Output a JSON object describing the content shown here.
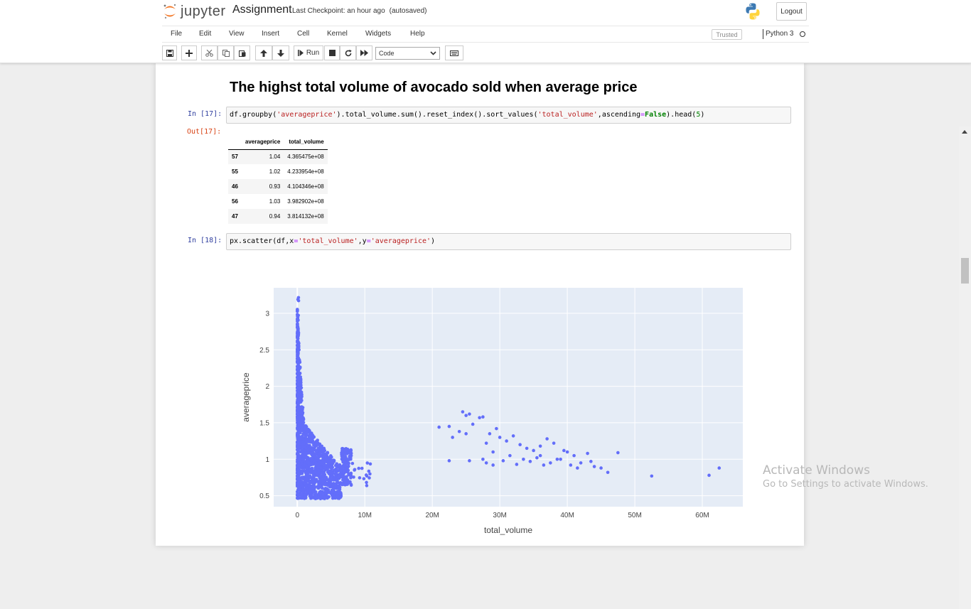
{
  "header": {
    "logo_text": "jupyter",
    "notebook_name": "Assignment",
    "checkpoint": "Last Checkpoint: an hour ago",
    "autosave": "(autosaved)",
    "logout_label": "Logout"
  },
  "menubar": {
    "items": [
      "File",
      "Edit",
      "View",
      "Insert",
      "Cell",
      "Kernel",
      "Widgets",
      "Help"
    ],
    "trusted": "Trusted",
    "kernel_name": "Python 3"
  },
  "toolbar": {
    "run_label": "Run",
    "cell_type": "Code"
  },
  "notebook": {
    "heading": "The highst total volume of avocado sold when average price",
    "cell1": {
      "prompt": "In [17]:",
      "out_prompt": "Out[17]:",
      "code": {
        "p1": "df.groupby(",
        "s1": "'averageprice'",
        "p2": ").total_volume.sum().reset_index().sort_values(",
        "s2": "'total_volume'",
        "p3": ",ascending",
        "eq": "=",
        "kw": "False",
        "p4": ").head(",
        "num": "5",
        "p5": ")"
      },
      "table": {
        "columns": [
          "averageprice",
          "total_volume"
        ],
        "rows": [
          {
            "index": "57",
            "averageprice": "1.04",
            "total_volume": "4.365475e+08"
          },
          {
            "index": "55",
            "averageprice": "1.02",
            "total_volume": "4.233954e+08"
          },
          {
            "index": "46",
            "averageprice": "0.93",
            "total_volume": "4.104346e+08"
          },
          {
            "index": "56",
            "averageprice": "1.03",
            "total_volume": "3.982902e+08"
          },
          {
            "index": "47",
            "averageprice": "0.94",
            "total_volume": "3.814132e+08"
          }
        ]
      }
    },
    "cell2": {
      "prompt": "In [18]:",
      "code": {
        "p1": "px.scatter(df,x",
        "eq1": "=",
        "s1": "'total_volume'",
        "p2": ",y",
        "eq2": "=",
        "s2": "'averageprice'",
        "p3": ")"
      }
    }
  },
  "chart_data": {
    "type": "scatter",
    "xlabel": "total_volume",
    "ylabel": "averageprice",
    "x_ticks": [
      "0",
      "10M",
      "20M",
      "30M",
      "40M",
      "50M",
      "60M"
    ],
    "y_ticks": [
      "0.5",
      "1",
      "1.5",
      "2",
      "2.5",
      "3"
    ],
    "xlim": [
      -3500000,
      66000000
    ],
    "ylim": [
      0.35,
      3.35
    ],
    "marker_color": "#636efa",
    "plot_background": "#e5ecf6",
    "grid": true,
    "points": [
      [
        21000000,
        1.44
      ],
      [
        22500000,
        1.45
      ],
      [
        23000000,
        1.3
      ],
      [
        22500000,
        0.98
      ],
      [
        24000000,
        1.38
      ],
      [
        24500000,
        1.65
      ],
      [
        25000000,
        1.6
      ],
      [
        25500000,
        1.62
      ],
      [
        26000000,
        1.48
      ],
      [
        27000000,
        1.57
      ],
      [
        27500000,
        1.58
      ],
      [
        28000000,
        1.22
      ],
      [
        28500000,
        1.35
      ],
      [
        29000000,
        1.1
      ],
      [
        29500000,
        1.42
      ],
      [
        25000000,
        1.35
      ],
      [
        25500000,
        0.98
      ],
      [
        27500000,
        1.0
      ],
      [
        28000000,
        0.95
      ],
      [
        29000000,
        0.92
      ],
      [
        30000000,
        1.3
      ],
      [
        31000000,
        1.25
      ],
      [
        32000000,
        1.32
      ],
      [
        33000000,
        1.2
      ],
      [
        34000000,
        1.15
      ],
      [
        35000000,
        1.12
      ],
      [
        36000000,
        1.05
      ],
      [
        37000000,
        1.28
      ],
      [
        38000000,
        1.22
      ],
      [
        39000000,
        1.0
      ],
      [
        40000000,
        1.1
      ],
      [
        41000000,
        1.05
      ],
      [
        42000000,
        0.95
      ],
      [
        43000000,
        1.08
      ],
      [
        44000000,
        0.9
      ],
      [
        45000000,
        0.88
      ],
      [
        46000000,
        0.82
      ],
      [
        47500000,
        1.09
      ],
      [
        52500000,
        0.77
      ],
      [
        61000000,
        0.78
      ],
      [
        62500000,
        0.88
      ],
      [
        30500000,
        0.98
      ],
      [
        31500000,
        1.05
      ],
      [
        32500000,
        0.93
      ],
      [
        33500000,
        1.0
      ],
      [
        34500000,
        0.97
      ],
      [
        35500000,
        1.02
      ],
      [
        36500000,
        0.92
      ],
      [
        37500000,
        0.95
      ],
      [
        38500000,
        1.0
      ],
      [
        40500000,
        0.92
      ],
      [
        41500000,
        0.88
      ],
      [
        43500000,
        0.97
      ],
      [
        39500000,
        1.12
      ],
      [
        36000000,
        1.18
      ]
    ]
  }
}
